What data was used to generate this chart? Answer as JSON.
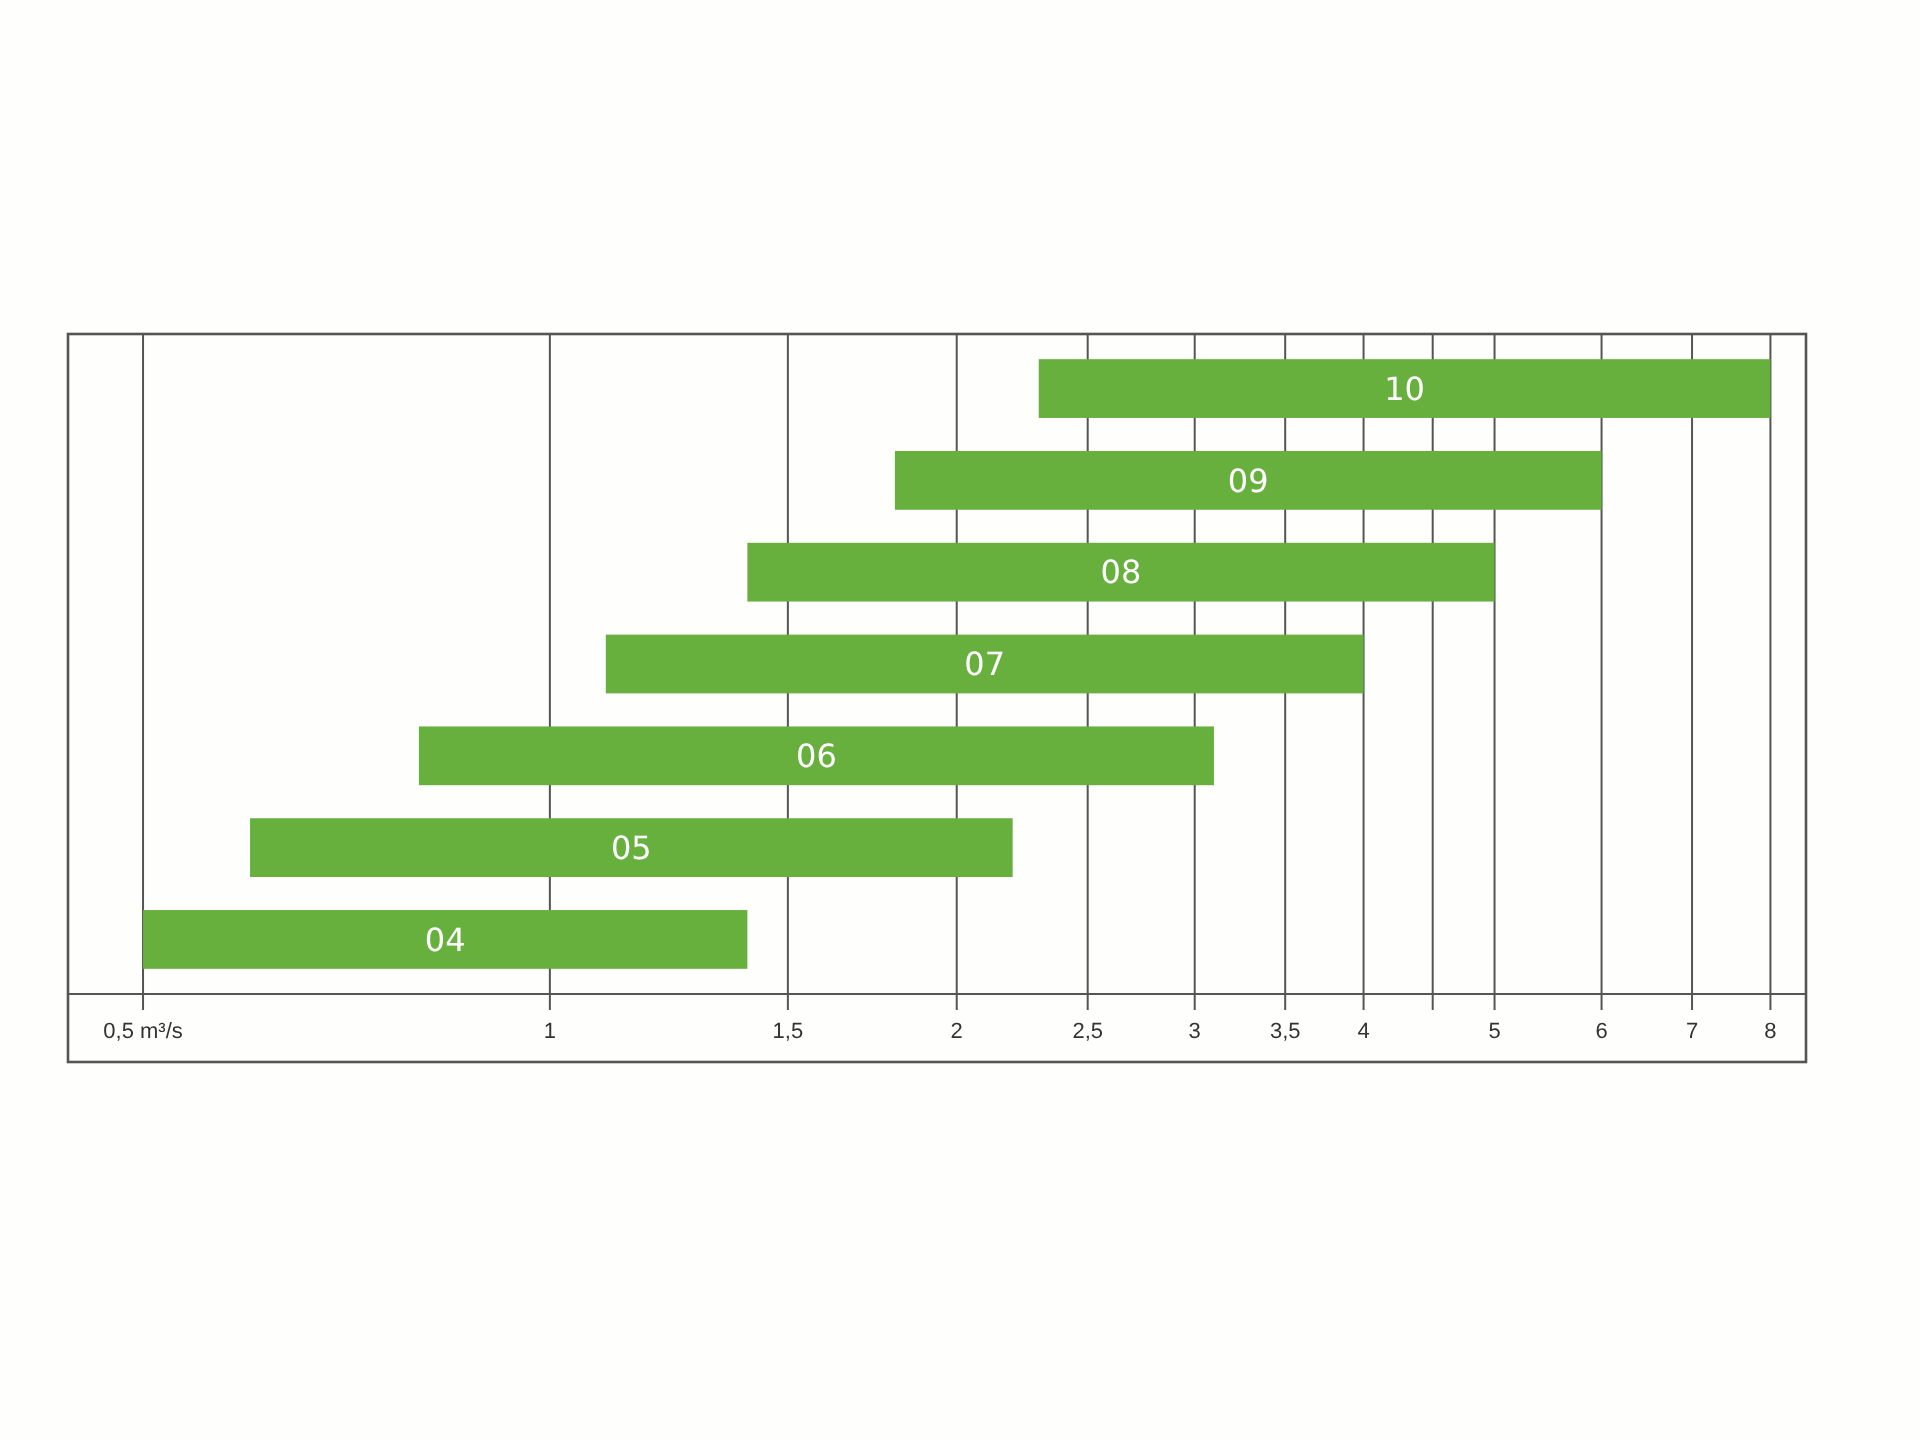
{
  "chart_data": {
    "type": "bar",
    "orientation": "horizontal",
    "log": "x",
    "categories": [
      "10",
      "09",
      "08",
      "07",
      "06",
      "05",
      "04"
    ],
    "base": [
      2.3,
      1.8,
      1.4,
      1.1,
      0.8,
      0.6,
      0.5
    ],
    "values": [
      5.7,
      4.2,
      3.6,
      2.9,
      2.3,
      1.6,
      0.9
    ],
    "color": "#67b03d",
    "xlim": [
      0.44,
      8.5
    ],
    "xticks": [
      {
        "value": 0.5,
        "label": "0,5 m³/s"
      },
      1,
      {
        "value": 1.5,
        "label": "1,5"
      },
      2,
      {
        "value": 2.5,
        "label": "2,5"
      },
      3,
      {
        "value": 3.5,
        "label": "3,5"
      },
      4,
      {
        "value": 4.5,
        "label": null
      },
      5,
      6,
      7,
      8
    ],
    "grid": "x"
  }
}
